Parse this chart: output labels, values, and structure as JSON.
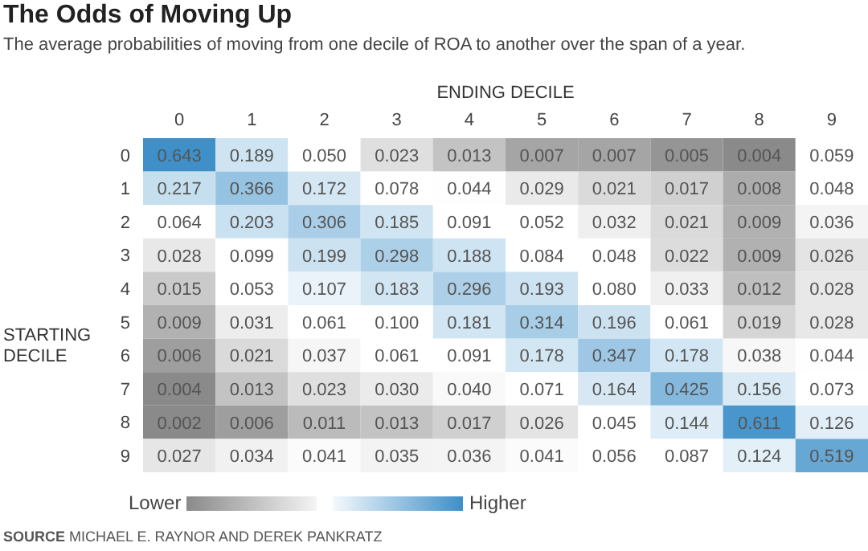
{
  "chart_data": {
    "type": "heatmap",
    "title": "The Odds of Moving Up",
    "subtitle": "The average probabilities of moving from one decile of ROA to another over the span of a year.",
    "xlabel": "ENDING DECILE",
    "ylabel": "STARTING DECILE",
    "categories": [
      "0",
      "1",
      "2",
      "3",
      "4",
      "5",
      "6",
      "7",
      "8",
      "9"
    ],
    "y_categories": [
      "0",
      "1",
      "2",
      "3",
      "4",
      "5",
      "6",
      "7",
      "8",
      "9"
    ],
    "cells": [
      [
        0.643,
        0.189,
        0.05,
        0.023,
        0.013,
        0.007,
        0.007,
        0.005,
        0.004,
        0.059
      ],
      [
        0.217,
        0.366,
        0.172,
        0.078,
        0.044,
        0.029,
        0.021,
        0.017,
        0.008,
        0.048
      ],
      [
        0.064,
        0.203,
        0.306,
        0.185,
        0.091,
        0.052,
        0.032,
        0.021,
        0.009,
        0.036
      ],
      [
        0.028,
        0.099,
        0.199,
        0.298,
        0.188,
        0.084,
        0.048,
        0.022,
        0.009,
        0.026
      ],
      [
        0.015,
        0.053,
        0.107,
        0.183,
        0.296,
        0.193,
        0.08,
        0.033,
        0.012,
        0.028
      ],
      [
        0.009,
        0.031,
        0.061,
        0.1,
        0.181,
        0.314,
        0.196,
        0.061,
        0.019,
        0.028
      ],
      [
        0.006,
        0.021,
        0.037,
        0.061,
        0.091,
        0.178,
        0.347,
        0.178,
        0.038,
        0.044
      ],
      [
        0.004,
        0.013,
        0.023,
        0.03,
        0.04,
        0.071,
        0.164,
        0.425,
        0.156,
        0.073
      ],
      [
        0.002,
        0.006,
        0.011,
        0.013,
        0.017,
        0.026,
        0.045,
        0.144,
        0.611,
        0.126
      ],
      [
        0.027,
        0.034,
        0.041,
        0.035,
        0.036,
        0.041,
        0.056,
        0.087,
        0.124,
        0.519
      ]
    ],
    "cell_labels": [
      [
        "0.643",
        "0.189",
        "0.050",
        "0.023",
        "0.013",
        "0.007",
        "0.007",
        "0.005",
        "0.004",
        "0.059"
      ],
      [
        "0.217",
        "0.366",
        "0.172",
        "0.078",
        "0.044",
        "0.029",
        "0.021",
        "0.017",
        "0.008",
        "0.048"
      ],
      [
        "0.064",
        "0.203",
        "0.306",
        "0.185",
        "0.091",
        "0.052",
        "0.032",
        "0.021",
        "0.009",
        "0.036"
      ],
      [
        "0.028",
        "0.099",
        "0.199",
        "0.298",
        "0.188",
        "0.084",
        "0.048",
        "0.022",
        "0.009",
        "0.026"
      ],
      [
        "0.015",
        "0.053",
        "0.107",
        "0.183",
        "0.296",
        "0.193",
        "0.080",
        "0.033",
        "0.012",
        "0.028"
      ],
      [
        "0.009",
        "0.031",
        "0.061",
        "0.100",
        "0.181",
        "0.314",
        "0.196",
        "0.061",
        "0.019",
        "0.028"
      ],
      [
        "0.006",
        "0.021",
        "0.037",
        "0.061",
        "0.091",
        "0.178",
        "0.347",
        "0.178",
        "0.038",
        "0.044"
      ],
      [
        "0.004",
        "0.013",
        "0.023",
        "0.030",
        "0.040",
        "0.071",
        "0.164",
        "0.425",
        "0.156",
        "0.073"
      ],
      [
        "0.002",
        "0.006",
        "0.011",
        "0.013",
        "0.017",
        "0.026",
        "0.045",
        "0.144",
        "0.611",
        "0.126"
      ],
      [
        "0.027",
        "0.034",
        "0.041",
        "0.035",
        "0.036",
        "0.041",
        "0.056",
        "0.087",
        "0.124",
        "0.519"
      ]
    ],
    "annotations": [
      "Lower",
      "Higher",
      "SOURCE MICHAEL E. RAYNOR AND DEREK PANKRATZ"
    ]
  }
}
